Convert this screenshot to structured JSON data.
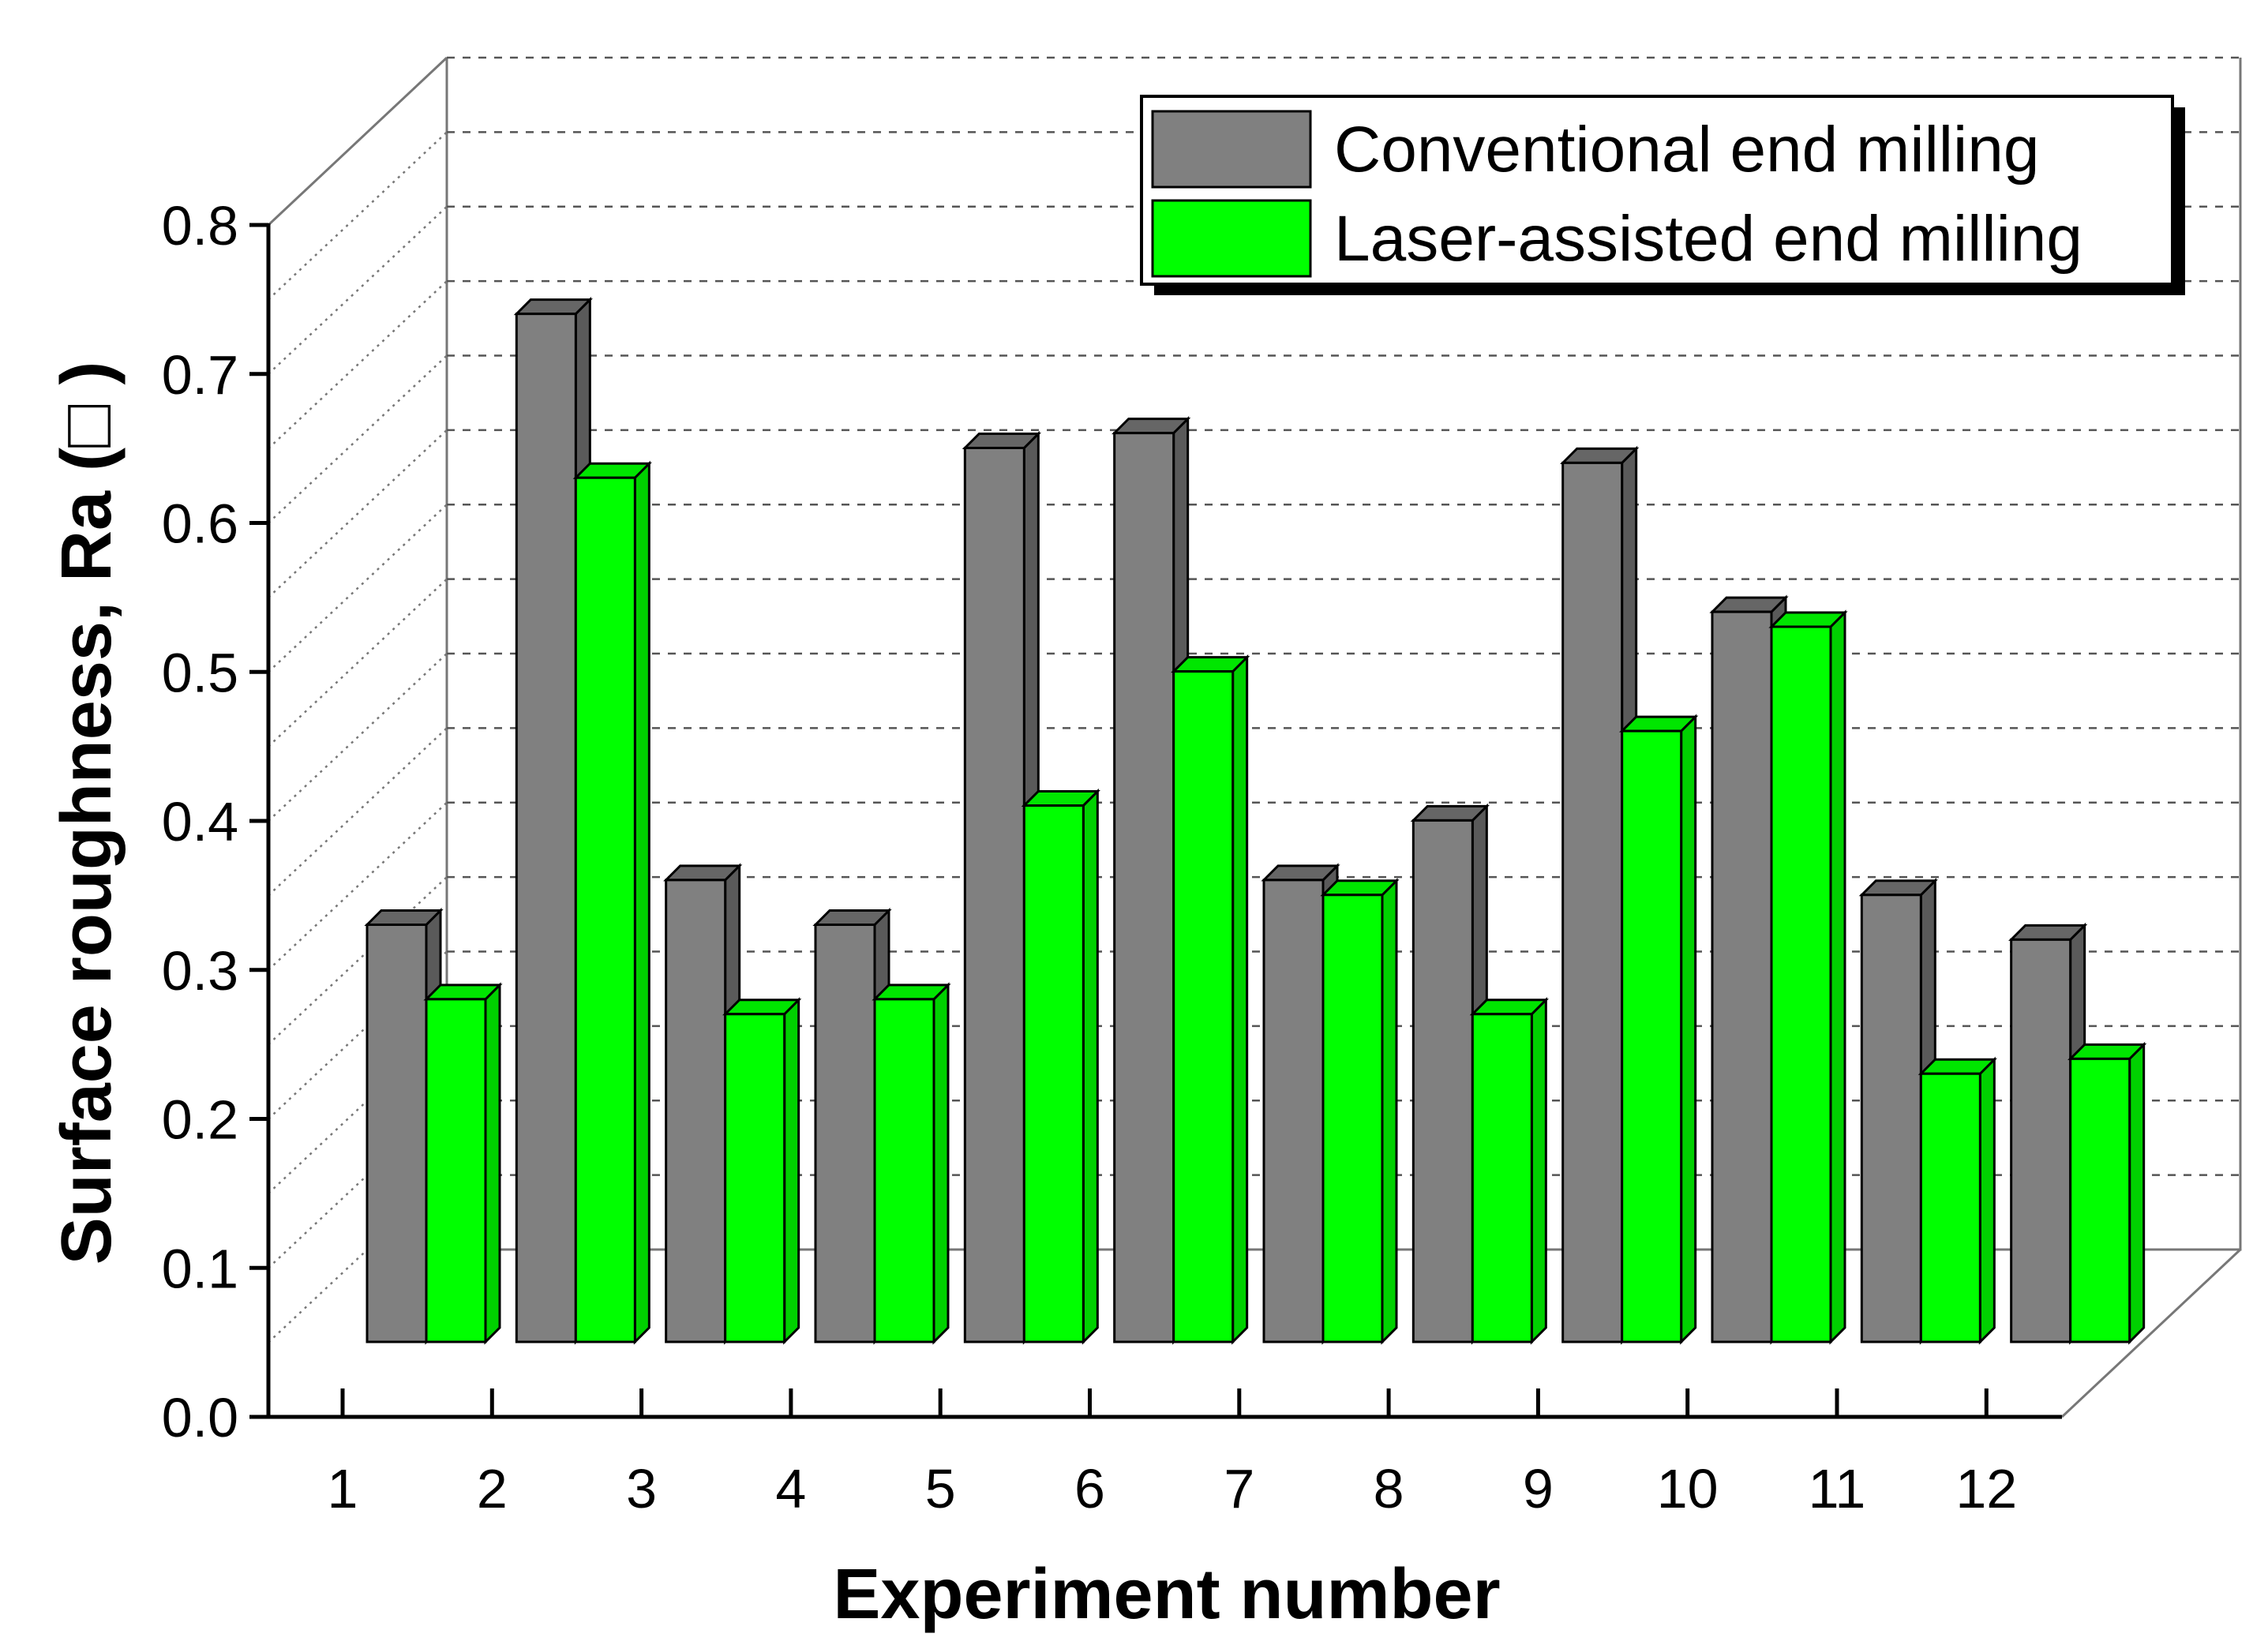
{
  "chart_data": {
    "type": "bar",
    "style": "3d-clustered",
    "title": "",
    "xlabel": "Experiment number",
    "ylabel": "Surface roughness, Ra (□ )",
    "ylim": [
      0.0,
      0.8
    ],
    "yticks": [
      "0.0",
      "0.1",
      "0.2",
      "0.3",
      "0.4",
      "0.5",
      "0.6",
      "0.7",
      "0.8"
    ],
    "grid": true,
    "legend_position": "top-right",
    "categories": [
      "1",
      "2",
      "3",
      "4",
      "5",
      "6",
      "7",
      "8",
      "9",
      "10",
      "11",
      "12"
    ],
    "series": [
      {
        "name": "Conventional end milling",
        "color": "#808080",
        "values": [
          0.28,
          0.69,
          0.31,
          0.28,
          0.6,
          0.61,
          0.31,
          0.35,
          0.59,
          0.49,
          0.3,
          0.27
        ]
      },
      {
        "name": "Laser-assisted end milling",
        "color": "#00ff00",
        "values": [
          0.23,
          0.58,
          0.22,
          0.23,
          0.36,
          0.45,
          0.3,
          0.22,
          0.41,
          0.48,
          0.18,
          0.19
        ]
      }
    ]
  }
}
